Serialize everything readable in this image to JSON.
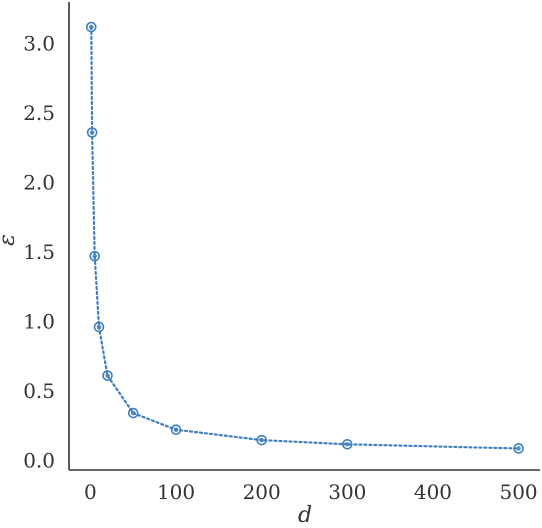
{
  "chart_data": {
    "type": "line",
    "xlabel": "d",
    "ylabel": "ε",
    "xlim": [
      -25,
      525
    ],
    "ylim": [
      -0.07,
      3.3
    ],
    "xticks": [
      0,
      100,
      200,
      300,
      400,
      500
    ],
    "yticks": [
      0.0,
      0.5,
      1.0,
      1.5,
      2.0,
      2.5,
      3.0
    ],
    "xtick_labels": [
      "0",
      "100",
      "200",
      "300",
      "400",
      "500"
    ],
    "ytick_labels": [
      "0.0",
      "0.5",
      "1.0",
      "1.5",
      "2.0",
      "2.5",
      "3.0"
    ],
    "grid": false,
    "series": [
      {
        "x": [
          1,
          2,
          5,
          10,
          20,
          50,
          100,
          200,
          300,
          500
        ],
        "y": [
          3.12,
          2.36,
          1.47,
          0.96,
          0.61,
          0.34,
          0.22,
          0.145,
          0.115,
          0.085
        ],
        "color": "#3f7fbf",
        "line_style": "dotted",
        "marker": "circle"
      }
    ]
  }
}
